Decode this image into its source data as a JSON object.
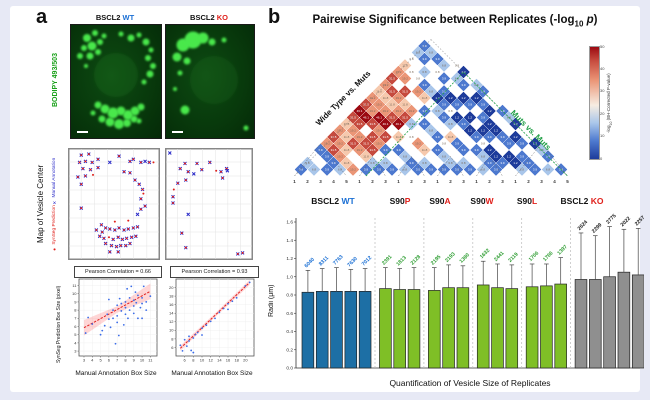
{
  "panel_a": {
    "label": "a",
    "bodipy_label": "BODIPY 493/503",
    "img_wt": {
      "prefix": "BSCL2 ",
      "suffix": "WT",
      "suffix_color": "#1a6fd4"
    },
    "img_ko": {
      "prefix": "BSCL2 ",
      "suffix": "KO",
      "suffix_color": "#e0201b"
    },
    "map_title": "Map of Vesicle Center",
    "map_legend": [
      {
        "sym": "● ",
        "label": "SynSeg Prediction",
        "color": "#e0201b"
      },
      {
        "sym": " ✕ ",
        "label": "Manual Annotation",
        "color": "#2a2ac8"
      }
    ]
  },
  "panel_b": {
    "label": "b",
    "title_pre": "Pairewise Significance between Replicates (-log",
    "title_sub": "10",
    "title_sp": " ",
    "title_p": "p",
    "title_close": ")",
    "colorbar": {
      "ticks": [
        50,
        40,
        30,
        20,
        10,
        0
      ],
      "label_pre": "-log",
      "label_sub": "10",
      "label_tail": " (BH-Corrected P-value)"
    }
  },
  "chart_data": [
    {
      "id": "vesicle_map_wt",
      "type": "scatter",
      "series": [
        {
          "name": "SynSeg Prediction",
          "marker": "dot",
          "color": "#e0201b"
        },
        {
          "name": "Manual Annotation",
          "marker": "x",
          "color": "#2a2ac8"
        }
      ],
      "note": "points as [x_pct, y_pct, type] type:0=both,1=red dot only,2=blue x only",
      "points": [
        [
          11,
          3,
          0
        ],
        [
          20,
          2,
          0
        ],
        [
          16,
          9,
          0
        ],
        [
          9,
          10,
          0
        ],
        [
          24,
          10,
          0
        ],
        [
          31,
          7,
          0
        ],
        [
          13,
          16,
          0
        ],
        [
          22,
          17,
          0
        ],
        [
          31,
          15,
          0
        ],
        [
          7,
          24,
          0
        ],
        [
          16,
          23,
          0
        ],
        [
          25,
          22,
          1
        ],
        [
          11,
          31,
          0
        ],
        [
          45,
          10,
          2
        ],
        [
          56,
          4,
          0
        ],
        [
          69,
          9,
          0
        ],
        [
          73,
          7,
          0
        ],
        [
          82,
          10,
          0
        ],
        [
          87,
          9,
          2
        ],
        [
          92,
          10,
          0
        ],
        [
          97,
          10,
          1
        ],
        [
          62,
          19,
          0
        ],
        [
          69,
          20,
          0
        ],
        [
          75,
          27,
          0
        ],
        [
          80,
          31,
          0
        ],
        [
          84,
          36,
          0
        ],
        [
          85,
          40,
          1
        ],
        [
          82,
          45,
          0
        ],
        [
          87,
          52,
          0
        ],
        [
          82,
          55,
          0
        ],
        [
          78,
          60,
          2
        ],
        [
          11,
          54,
          0
        ],
        [
          51,
          67,
          1
        ],
        [
          67,
          66,
          1
        ],
        [
          35,
          70,
          0
        ],
        [
          40,
          73,
          0
        ],
        [
          29,
          75,
          0
        ],
        [
          36,
          77,
          0
        ],
        [
          45,
          74,
          0
        ],
        [
          51,
          75,
          0
        ],
        [
          56,
          73,
          0
        ],
        [
          62,
          75,
          0
        ],
        [
          67,
          74,
          0
        ],
        [
          73,
          73,
          0
        ],
        [
          78,
          72,
          0
        ],
        [
          33,
          81,
          0
        ],
        [
          38,
          83,
          0
        ],
        [
          44,
          82,
          1
        ],
        [
          49,
          84,
          0
        ],
        [
          55,
          82,
          0
        ],
        [
          60,
          84,
          0
        ],
        [
          65,
          83,
          0
        ],
        [
          71,
          82,
          0
        ],
        [
          76,
          81,
          0
        ],
        [
          40,
          88,
          0
        ],
        [
          47,
          90,
          0
        ],
        [
          53,
          91,
          0
        ],
        [
          58,
          90,
          0
        ],
        [
          64,
          90,
          0
        ],
        [
          69,
          88,
          0
        ],
        [
          45,
          96,
          0
        ],
        [
          55,
          96,
          0
        ]
      ]
    },
    {
      "id": "vesicle_map_ko",
      "type": "scatter",
      "series": [
        {
          "name": "SynSeg Prediction",
          "marker": "dot",
          "color": "#e0201b"
        },
        {
          "name": "Manual Annotation",
          "marker": "x",
          "color": "#2a2ac8"
        }
      ],
      "points": [
        [
          1,
          1,
          2
        ],
        [
          20,
          11,
          0
        ],
        [
          14,
          16,
          0
        ],
        [
          35,
          11,
          0
        ],
        [
          51,
          10,
          0
        ],
        [
          24,
          19,
          0
        ],
        [
          31,
          21,
          2
        ],
        [
          41,
          17,
          0
        ],
        [
          59,
          18,
          1
        ],
        [
          65,
          19,
          0
        ],
        [
          72,
          16,
          0
        ],
        [
          73,
          18,
          2
        ],
        [
          67,
          25,
          0
        ],
        [
          21,
          27,
          0
        ],
        [
          11,
          30,
          0
        ],
        [
          6,
          36,
          1
        ],
        [
          5,
          43,
          0
        ],
        [
          5,
          49,
          0
        ],
        [
          24,
          60,
          2
        ],
        [
          16,
          78,
          0
        ],
        [
          21,
          92,
          0
        ],
        [
          86,
          98,
          0
        ],
        [
          92,
          97,
          0
        ]
      ]
    },
    {
      "id": "correlation_wt",
      "type": "scatter",
      "title": "Pearson Correlation = 0.66",
      "xlabel": "Manual Annotation Box Size",
      "ylabel": "SynSeg Prediction Box Size (pixel)",
      "xlim": [
        2.4,
        11.8
      ],
      "ylim": [
        2.4,
        11.8
      ],
      "xticks": [
        3,
        4,
        5,
        6,
        7,
        8,
        9,
        10,
        11
      ],
      "yticks": [
        3,
        4,
        5,
        6,
        7,
        8,
        9,
        10,
        11
      ],
      "fit": {
        "x": [
          3,
          11
        ],
        "y": [
          5.85,
          10.3
        ],
        "band": [
          0.95,
          0.4,
          0.95
        ],
        "color": "#e02020"
      },
      "points": [
        [
          3.2,
          5.2
        ],
        [
          3.5,
          7.1
        ],
        [
          4,
          6.3
        ],
        [
          5,
          5.0
        ],
        [
          5.2,
          5.5
        ],
        [
          5.5,
          6.1
        ],
        [
          5.8,
          7.5
        ],
        [
          6,
          6.9
        ],
        [
          6,
          9.3
        ],
        [
          6.2,
          5.9
        ],
        [
          6.5,
          7.0
        ],
        [
          6.5,
          8.0
        ],
        [
          6.8,
          3.9
        ],
        [
          7,
          6.5
        ],
        [
          7,
          7.3
        ],
        [
          7,
          8.6
        ],
        [
          7.2,
          4.9
        ],
        [
          7.3,
          9.4
        ],
        [
          7.5,
          7.9
        ],
        [
          7.5,
          8.8
        ],
        [
          7.8,
          6.2
        ],
        [
          8,
          7.5
        ],
        [
          8,
          8.3
        ],
        [
          8,
          9.0
        ],
        [
          8.2,
          10.6
        ],
        [
          8.3,
          7.0
        ],
        [
          8.5,
          8.0
        ],
        [
          8.5,
          9.5
        ],
        [
          8.7,
          10.9
        ],
        [
          9,
          7.6
        ],
        [
          9,
          8.5
        ],
        [
          9,
          9.2
        ],
        [
          9.2,
          10.2
        ],
        [
          9.3,
          8.9
        ],
        [
          9.5,
          7.0
        ],
        [
          9.5,
          9.8
        ],
        [
          9.8,
          8.3
        ],
        [
          10,
          7.0
        ],
        [
          10,
          8.8
        ],
        [
          10,
          9.5
        ],
        [
          10.2,
          10.9
        ],
        [
          10.5,
          8.0
        ],
        [
          10.5,
          9.0
        ],
        [
          11,
          9.7
        ]
      ]
    },
    {
      "id": "correlation_ko",
      "type": "scatter",
      "title": "Pearson Correlation = 0.93",
      "xlabel": "Manual Annotation Box Size",
      "xlim": [
        4,
        22
      ],
      "ylim": [
        4,
        22
      ],
      "xticks": [
        6,
        8,
        10,
        12,
        14,
        16,
        18,
        20
      ],
      "yticks": [
        6,
        8,
        10,
        12,
        14,
        16,
        18,
        20
      ],
      "fit": {
        "x": [
          5,
          21
        ],
        "y": [
          5.8,
          21.2
        ],
        "band": [
          0.6,
          0.45,
          0.6
        ],
        "color": "#e02020"
      },
      "points": [
        [
          5,
          6.5
        ],
        [
          5.5,
          5.2
        ],
        [
          6,
          7.8
        ],
        [
          6.5,
          6.3
        ],
        [
          7,
          7.5
        ],
        [
          7,
          8.6
        ],
        [
          7.5,
          5.3
        ],
        [
          8,
          4.8
        ],
        [
          8,
          8.2
        ],
        [
          8.5,
          9.0
        ],
        [
          9,
          9.5
        ],
        [
          10,
          8.9
        ],
        [
          10,
          10.5
        ],
        [
          11,
          11.2
        ],
        [
          12,
          12.1
        ],
        [
          13,
          12.8
        ],
        [
          14,
          14.2
        ],
        [
          15,
          15.1
        ],
        [
          16,
          14.9
        ],
        [
          16,
          16.2
        ],
        [
          17,
          16.8
        ],
        [
          18,
          17.6
        ],
        [
          20,
          20.4
        ],
        [
          21,
          21.2
        ]
      ]
    },
    {
      "id": "pairwise_heatmap",
      "type": "heatmap",
      "title": "Pairewise Significance between Replicates (-log10 p)",
      "value_label": "-log10 (BH-Corrected P-value)",
      "colorbar_ticks": [
        50,
        40,
        30,
        20,
        10,
        0
      ],
      "region_labels": [
        {
          "text": "Wide Type vs. Muts",
          "color": "#111111"
        },
        {
          "text": "Muts vs. Muts",
          "color": "#1e9e44"
        }
      ],
      "replicate_numbers": [
        [
          1,
          2,
          3,
          4,
          5
        ],
        [
          1,
          2,
          3
        ],
        [
          1,
          2,
          3
        ],
        [
          1,
          2,
          3
        ],
        [
          1,
          2,
          3
        ],
        [
          1,
          2,
          3,
          4,
          5
        ]
      ],
      "cell_code_values": {
        "R": 46.1,
        "r": 31.5,
        "o": 19.2,
        "p": 11.8,
        "l": 6.8,
        "b": 3.9,
        "B": 1.2,
        "w": 0.8
      },
      "cell_code_colors": {
        "R": "#9c0a12",
        "r": "#c64a3e",
        "o": "#eb9677",
        "p": "#f6c9ad",
        "l": "#a9c6ea",
        "b": "#4d79cf",
        "B": "#1e3c9b",
        "w": "#ffffff"
      },
      "rows": [
        "bl.boroprRroporopwlb.",
        "l.broporRoopr.ow.bl.",
        "bbopro.rRopor.wl.b.",
        "lp.orroRrop.ob.wl.",
        "o.pror.Rro.pl.b.w",
        "bl.b.p.l.b.Bb.lB",
        "bl.b.w.b.lbB.b.",
        "b.l.o.l.bwbB.l",
        "lb.p.b.lB.bBb",
        "bl.bwp.bB.b.",
        "b.l.b.B.bB.",
        "bl.b.bBB.b",
        "bl.bwbB.l",
        "b.lB.b.B",
        "lbB.bB.",
        "bbB.b.",
        "​.Bb.B",
        "lb.l",
        "b.b",
        "l.",
        "b"
      ]
    },
    {
      "id": "radii_bar",
      "type": "bar",
      "xlabel": "Quantification of Vesicle Size of Replicates",
      "ylabel": "Radii (μm)",
      "ylim": [
        0,
        1.6
      ],
      "yticks": [
        "0.0",
        "0.2",
        "0.4",
        "0.6",
        "0.8",
        "1.0",
        "1.2",
        "1.4",
        "1.6"
      ],
      "groups": [
        {
          "prefix": "BSCL2 ",
          "suffix": "WT",
          "suffix_color": "#1a6fd4",
          "bar_color": "#1d6fa5",
          "num_color": "#1a6fd4",
          "center": 323,
          "values": [
            0.83,
            0.84,
            0.84,
            0.84,
            0.84
          ],
          "err_tops": [
            1.07,
            1.09,
            1.1,
            1.08,
            1.09
          ],
          "counts": [
            6040,
            8311,
            7763,
            7630,
            7012
          ]
        },
        {
          "prefix": "S90",
          "suffix": "P",
          "suffix_color": "#e0201b",
          "bar_color": "#7fbf26",
          "num_color": "#2f9e33",
          "center": 390,
          "values": [
            0.87,
            0.86,
            0.86
          ],
          "err_tops": [
            1.1,
            1.09,
            1.1
          ],
          "counts": [
            2391,
            1813,
            2128
          ]
        },
        {
          "prefix": "S90",
          "suffix": "A",
          "suffix_color": "#e0201b",
          "bar_color": "#7fbf26",
          "num_color": "#2f9e33",
          "center": 430,
          "values": [
            0.85,
            0.88,
            0.88
          ],
          "err_tops": [
            1.1,
            1.13,
            1.12
          ],
          "counts": [
            2195,
            2193,
            1390
          ]
        },
        {
          "prefix": "S90",
          "suffix": "W",
          "suffix_color": "#e0201b",
          "bar_color": "#7fbf26",
          "num_color": "#2f9e33",
          "center": 472,
          "values": [
            0.91,
            0.88,
            0.87
          ],
          "err_tops": [
            1.17,
            1.14,
            1.13
          ],
          "counts": [
            1632,
            2441,
            2119
          ]
        },
        {
          "prefix": "S90",
          "suffix": "L",
          "suffix_color": "#e0201b",
          "bar_color": "#7fbf26",
          "num_color": "#2f9e33",
          "center": 517,
          "values": [
            0.89,
            0.9,
            0.92
          ],
          "err_tops": [
            1.14,
            1.14,
            1.21
          ],
          "counts": [
            1706,
            1766,
            1397
          ]
        },
        {
          "prefix": "BSCL2 ",
          "suffix": "KO",
          "suffix_color": "#e0201b",
          "bar_color": "#8f8f8f",
          "num_color": "#222222",
          "center": 572,
          "values": [
            0.97,
            0.97,
            1.0,
            1.05,
            1.02
          ],
          "err_tops": [
            1.48,
            1.45,
            1.55,
            1.52,
            1.53
          ],
          "counts": [
            2624,
            2299,
            2775,
            2022,
            2257
          ]
        }
      ]
    }
  ]
}
